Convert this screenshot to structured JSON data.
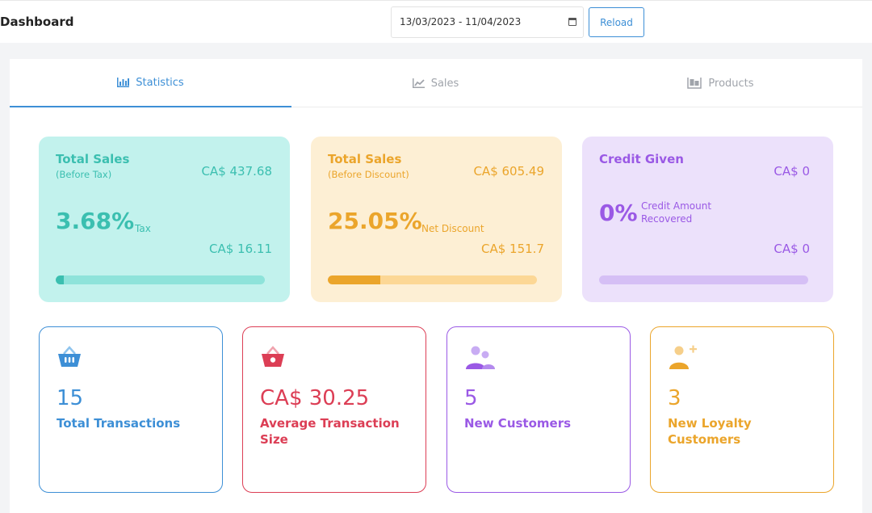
{
  "header": {
    "title": "Dashboard",
    "date_range": "13/03/2023 - 11/04/2023",
    "reload_label": "Reload"
  },
  "tabs": [
    {
      "label": "Statistics",
      "icon": "bar-chart-icon",
      "active": true
    },
    {
      "label": "Sales",
      "icon": "line-chart-icon",
      "active": false
    },
    {
      "label": "Products",
      "icon": "pallet-boxes-icon",
      "active": false
    }
  ],
  "summary_cards": {
    "tax": {
      "title": "Total Sales",
      "subtitle": "(Before Tax)",
      "amount": "CA$ 437.68",
      "percent": "3.68%",
      "percent_label": "Tax",
      "secondary_amount": "CA$ 16.11",
      "progress": 0.0368,
      "color": "#3bbfb0"
    },
    "discount": {
      "title": "Total Sales",
      "subtitle": "(Before Discount)",
      "amount": "CA$ 605.49",
      "percent": "25.05%",
      "percent_label": "Net Discount",
      "secondary_amount": "CA$ 151.7",
      "progress": 0.2505,
      "color": "#eba52b"
    },
    "credit": {
      "title": "Credit Given",
      "amount": "CA$ 0",
      "percent": "0%",
      "percent_label": "Credit Amount Recovered",
      "secondary_amount": "CA$ 0",
      "progress": 0,
      "color": "#9a59e5"
    }
  },
  "stats": [
    {
      "value": "15",
      "label": "Total Transactions",
      "icon": "basket-icon",
      "color": "#3d8fd6"
    },
    {
      "value": "CA$ 30.25",
      "label": "Average Transaction Size",
      "icon": "basket-icon",
      "color": "#dc3e55"
    },
    {
      "value": "5",
      "label": "New Customers",
      "icon": "users-icon",
      "color": "#9a59e5"
    },
    {
      "value": "3",
      "label": "New Loyalty Customers",
      "icon": "user-plus-icon",
      "color": "#eba52b"
    }
  ]
}
